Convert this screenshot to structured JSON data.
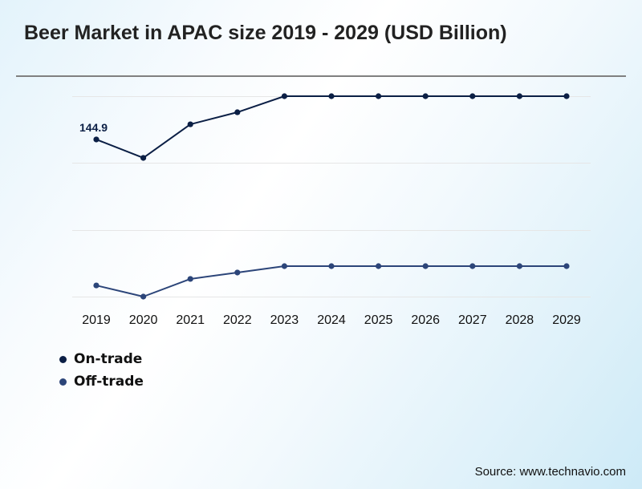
{
  "title": "Beer Market in APAC size 2019 - 2029 (USD Billion)",
  "source": "Source: www.technavio.com",
  "colors": {
    "on_trade": "#0b1f45",
    "off_trade": "#2c4579",
    "grid": "#e6e6e6"
  },
  "chart_data": {
    "type": "line",
    "title": "Beer Market in APAC size 2019 - 2029 (USD Billion)",
    "xlabel": "",
    "ylabel": "",
    "categories": [
      "2019",
      "2020",
      "2021",
      "2022",
      "2023",
      "2024",
      "2025",
      "2026",
      "2027",
      "2028",
      "2029"
    ],
    "series": [
      {
        "name": "On-trade",
        "values": [
          144.9,
          127.9,
          158.9,
          170.0,
          184.8,
          184.8,
          184.8,
          184.8,
          184.8,
          184.8,
          184.8
        ],
        "labels": [
          "144.9",
          "",
          "",
          "",
          "",
          "",
          "",
          "",
          "",
          "",
          ""
        ]
      },
      {
        "name": "Off-trade",
        "values": [
          10.3,
          0.0,
          16.3,
          22.2,
          28.1,
          28.1,
          28.1,
          28.1,
          28.1,
          28.1,
          28.1
        ],
        "labels": [
          "",
          "",
          "",
          "",
          "",
          "",
          "",
          "",
          "",
          "",
          ""
        ]
      }
    ],
    "ylim": [
      0,
      184.8
    ],
    "yticks": [
      0,
      61.6,
      123.2,
      184.8
    ],
    "ytick_labels_visible": false,
    "grid": true,
    "legend": "bottom-left",
    "note": "Y values other than the labeled 144.9 are estimated from gridline positions (no y-axis labels shown)."
  },
  "legend": {
    "items": [
      {
        "label": "On-trade"
      },
      {
        "label": "Off-trade"
      }
    ]
  }
}
